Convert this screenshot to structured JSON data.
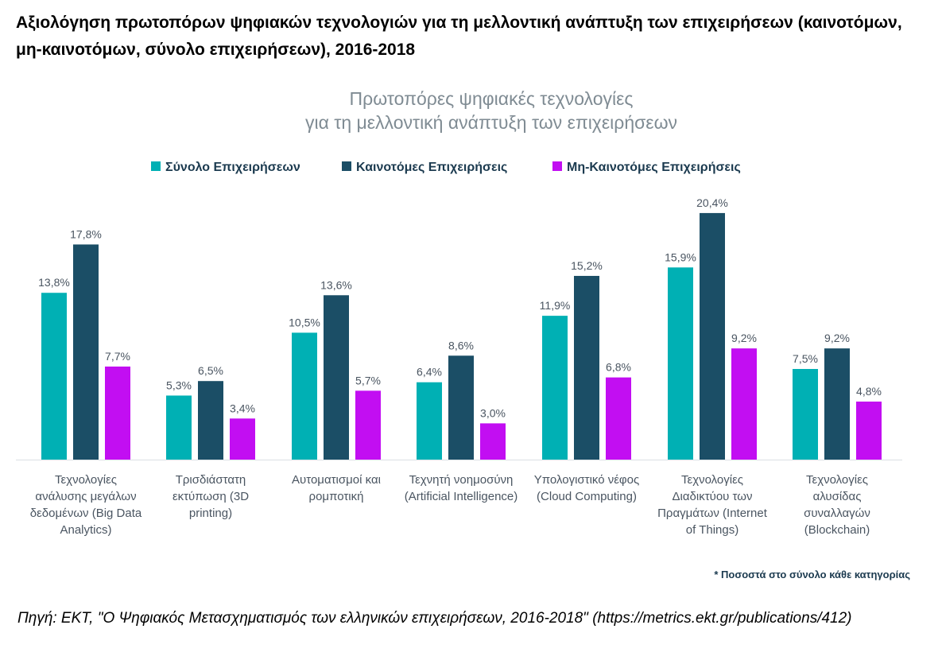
{
  "header": {
    "title": "Αξιολόγηση πρωτοπόρων ψηφιακών τεχνολογιών για τη μελλοντική ανάπτυξη των επιχειρήσεων (καινοτόμων, μη-καινοτόμων, σύνολο επιχειρήσεων), 2016-2018"
  },
  "chart_data": {
    "type": "bar",
    "title": [
      "Πρωτοπόρες ψηφιακές τεχνολογίες",
      "για τη μελλοντική ανάπτυξη των επιχειρήσεων"
    ],
    "xlabel": "",
    "ylabel": "",
    "ylim": [
      0,
      22
    ],
    "grid": false,
    "legend_position": "top-center",
    "categories": [
      [
        "Τεχνολογίες",
        "ανάλυσης μεγάλων",
        "δεδομένων (Big Data",
        "Analytics)"
      ],
      [
        "Τρισδιάστατη",
        "εκτύπωση (3D",
        "printing)"
      ],
      [
        "Αυτοματισμοί και",
        "ρομποτική"
      ],
      [
        "Τεχνητή νοημοσύνη",
        "(Artificial Intelligence)"
      ],
      [
        "Υπολογιστικό νέφος",
        "(Cloud Computing)"
      ],
      [
        "Τεχνολογίες",
        "Διαδικτύου των",
        "Πραγμάτων (Internet",
        "of Things)"
      ],
      [
        "Τεχνολογίες",
        "αλυσίδας",
        "συναλλαγών",
        "(Blockchain)"
      ]
    ],
    "series": [
      {
        "name": "Σύνολο Επιχειρήσεων",
        "color": "#00B0B4",
        "values": [
          13.8,
          5.3,
          10.5,
          6.4,
          11.9,
          15.9,
          7.5
        ],
        "labels": [
          "13,8%",
          "5,3%",
          "10,5%",
          "6,4%",
          "11,9%",
          "15,9%",
          "7,5%"
        ]
      },
      {
        "name": "Καινοτόμες Επιχειρήσεις",
        "color": "#1B4E66",
        "values": [
          17.8,
          6.5,
          13.6,
          8.6,
          15.2,
          20.4,
          9.2
        ],
        "labels": [
          "17,8%",
          "6,5%",
          "13,6%",
          "8,6%",
          "15,2%",
          "20,4%",
          "9,2%"
        ]
      },
      {
        "name": "Μη-Καινοτόμες Επιχειρήσεις",
        "color": "#C20EF2",
        "values": [
          7.7,
          3.4,
          5.7,
          3.0,
          6.8,
          9.2,
          4.8
        ],
        "labels": [
          "7,7%",
          "3,4%",
          "5,7%",
          "3,0%",
          "6,8%",
          "9,2%",
          "4,8%"
        ]
      }
    ],
    "annotation": "* Ποσοστά στο σύνολο κάθε κατηγορίας"
  },
  "source": {
    "text": "Πηγή: ΕΚΤ, \"Ο Ψηφιακός Μετασχηματισμός των ελληνικών επιχειρήσεων, 2016-2018\" (https://metrics.ekt.gr/publications/412)"
  }
}
